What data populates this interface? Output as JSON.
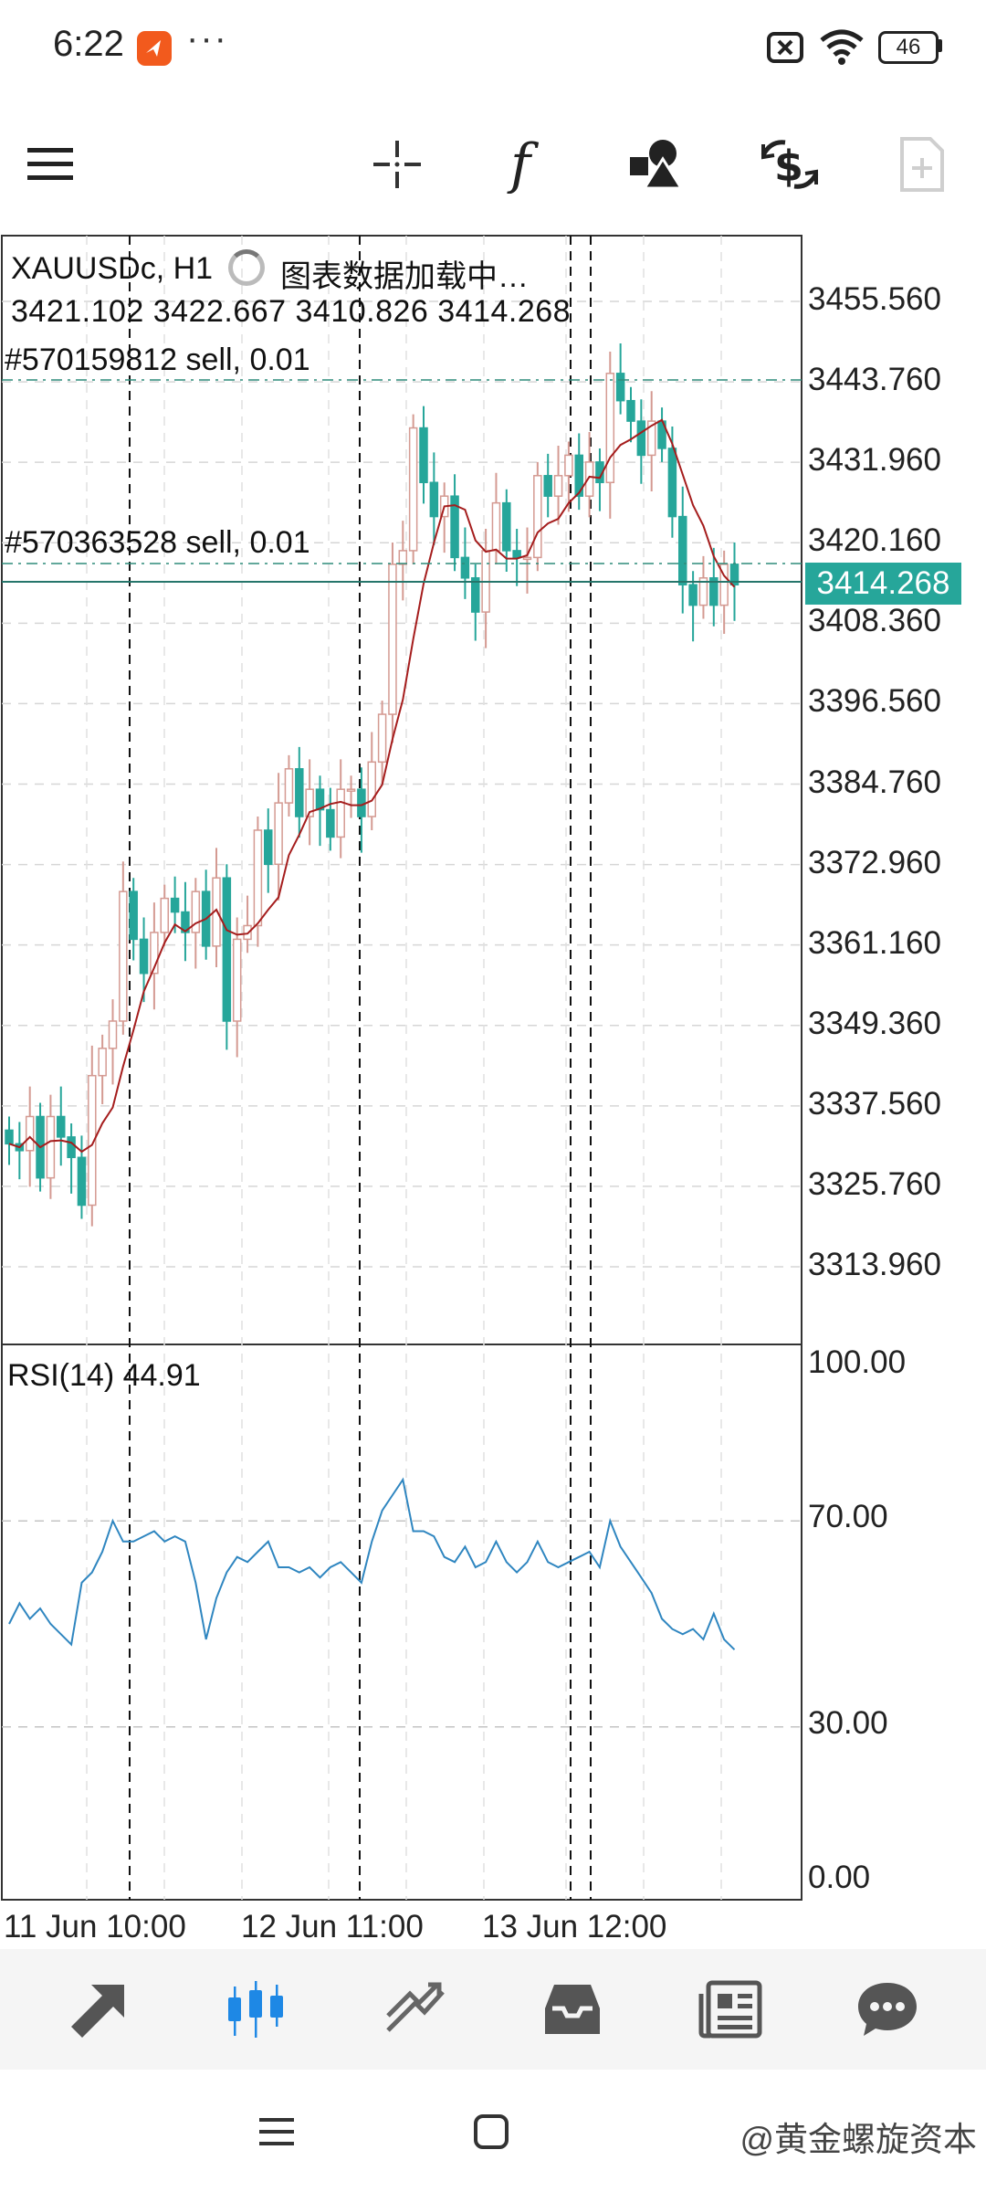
{
  "status_bar": {
    "time": "6:22",
    "more": "···",
    "battery": "46",
    "icons": [
      "app-notification-icon",
      "sim-off-icon",
      "wifi-icon",
      "battery-icon"
    ]
  },
  "toolbar": {
    "icons": [
      "menu-icon",
      "crosshair-icon",
      "indicators-icon",
      "objects-icon",
      "trade-icon",
      "new-order-icon"
    ]
  },
  "chart": {
    "symbol_line": "XAUUSDc, H1",
    "loading": "图表数据加载中…",
    "ohlc": "3421.102 3422.667 3410.826 3414.268",
    "order1": "#570159812 sell, 0.01",
    "order2": "#570363528 sell, 0.01",
    "current_price": "3414.268",
    "price_labels": [
      "3455.560",
      "3443.760",
      "3431.960",
      "3420.160",
      "3408.360",
      "3396.560",
      "3384.760",
      "3372.960",
      "3361.160",
      "3349.360",
      "3337.560",
      "3325.760",
      "3313.960"
    ],
    "rsi_title": "RSI(14) 44.91",
    "rsi_labels": [
      "100.00",
      "70.00",
      "30.00",
      "0.00"
    ],
    "date_labels": [
      "11 Jun 10:00",
      "12 Jun 11:00",
      "13 Jun 12:00"
    ],
    "colors": {
      "bull": "#d49a92",
      "bear": "#26a69a",
      "ma": "#a51d1d",
      "rsi": "#2f86c0"
    }
  },
  "bottom_nav": {
    "icons": [
      "quotes-icon",
      "chart-icon",
      "trade-icon",
      "history-icon",
      "news-icon",
      "messages-icon"
    ]
  },
  "watermark": "@黄金螺旋资本"
}
